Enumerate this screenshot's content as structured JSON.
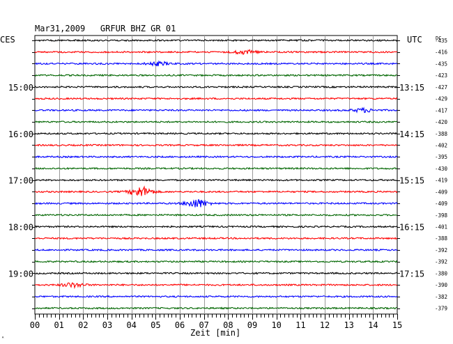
{
  "chart_data": {
    "type": "line",
    "title": "Mar31,2009   GRFUR BHZ GR 01",
    "left_label": "CES",
    "right_label": "UTC",
    "dc_label": "DC",
    "xlabel": "Zeit [min]",
    "xlim": [
      0,
      15
    ],
    "x_ticks": [
      "00",
      "01",
      "02",
      "03",
      "04",
      "05",
      "06",
      "07",
      "08",
      "09",
      "10",
      "11",
      "12",
      "13",
      "14",
      "15"
    ],
    "trace_colors": [
      "#000000",
      "#ff0000",
      "#0000ff",
      "#006600"
    ],
    "local_time_labels": [
      {
        "trace": 4,
        "text": "15:00"
      },
      {
        "trace": 8,
        "text": "16:00"
      },
      {
        "trace": 12,
        "text": "17:00"
      },
      {
        "trace": 16,
        "text": "18:00"
      },
      {
        "trace": 20,
        "text": "19:00"
      }
    ],
    "utc_time_labels": [
      {
        "trace": 4,
        "text": "13:15"
      },
      {
        "trace": 8,
        "text": "14:15"
      },
      {
        "trace": 12,
        "text": "15:15"
      },
      {
        "trace": 16,
        "text": "16:15"
      },
      {
        "trace": 20,
        "text": "17:15"
      }
    ],
    "dc_offsets": [
      -435,
      -416,
      -435,
      -423,
      -427,
      -429,
      -417,
      -420,
      -388,
      -402,
      -395,
      -430,
      -419,
      -409,
      -409,
      -398,
      -401,
      -388,
      -392,
      -392,
      -380,
      -390,
      -382,
      -379
    ],
    "events": [
      {
        "trace": 1,
        "minute": 8.7,
        "amplitude": 2.5
      },
      {
        "trace": 2,
        "minute": 5.1,
        "amplitude": 2.5
      },
      {
        "trace": 6,
        "minute": 13.6,
        "amplitude": 2.5
      },
      {
        "trace": 13,
        "minute": 4.4,
        "amplitude": 7
      },
      {
        "trace": 14,
        "minute": 6.7,
        "amplitude": 6
      },
      {
        "trace": 21,
        "minute": 1.6,
        "amplitude": 3
      }
    ]
  },
  "footer_mark": "ᴬ"
}
